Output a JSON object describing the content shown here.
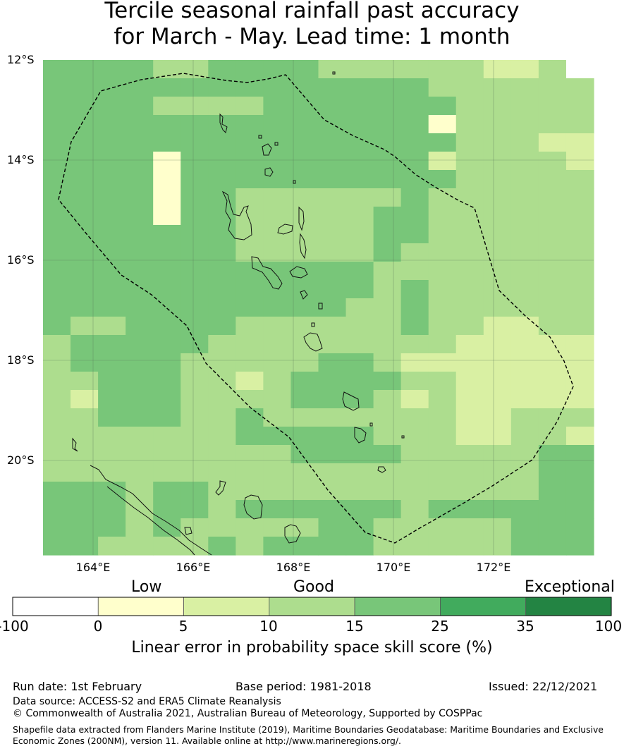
{
  "title": {
    "line1": "Tercile seasonal rainfall past accuracy",
    "line2": "for March - May. Lead time: 1 month"
  },
  "map": {
    "latitude_labels": [
      "12°S",
      "14°S",
      "16°S",
      "18°S",
      "20°S"
    ],
    "longitude_labels": [
      "164°E",
      "166°E",
      "168°E",
      "170°E",
      "172°E"
    ],
    "boundary_name": "Vanuatu exclusive economic zone (dashed)",
    "grid": [
      "22223322223333334435",
      "22222222222222333333",
      "22223333222222233333",
      "22222222222222133333",
      "22222222222222233344",
      "22221222222222433334",
      "22221222222222233333",
      "22221223333332333333",
      "22221223333322333333",
      "22222223333322333333",
      "22222223333323333333",
      "22222222222233333333",
      "22222222222232333333",
      "22222222222332333333",
      "23322223333332334433",
      "32222233333333344444",
      "32222333332234444444",
      "33222334322223344444",
      "34222333322234344444",
      "33222332333333344333",
      "33333332222233344334",
      "33333333322223333322",
      "33333333333333333322",
      "22232233333333333322",
      "22232232222223222222",
      "22232333332233333222",
      "22333323222233333222"
    ]
  },
  "colors": {
    "1": "#ffffcc",
    "2": "#78c679",
    "3": "#addd8e",
    "4": "#d9f0a3",
    "5": "#ffffff",
    "6": "#41ab5d"
  },
  "legend": {
    "categories": [
      "Low",
      "Good",
      "Exceptional"
    ],
    "ticks": [
      "-100",
      "0",
      "5",
      "10",
      "15",
      "25",
      "35",
      "100"
    ],
    "bins": [
      {
        "from": -100,
        "to": 0,
        "color": "#ffffff"
      },
      {
        "from": 0,
        "to": 5,
        "color": "#ffffcc"
      },
      {
        "from": 5,
        "to": 10,
        "color": "#d9f0a3"
      },
      {
        "from": 10,
        "to": 15,
        "color": "#addd8e"
      },
      {
        "from": 15,
        "to": 25,
        "color": "#78c679"
      },
      {
        "from": 25,
        "to": 35,
        "color": "#41ab5d"
      },
      {
        "from": 35,
        "to": 100,
        "color": "#238443"
      }
    ],
    "title": "Linear error in probability space skill score (%)"
  },
  "footer": {
    "run_date": "Run date: 1st February",
    "base_period": "Base period: 1981-2018",
    "issued": "Issued: 22/12/2021",
    "data_source": "Data source: ACCESS-S2 and ERA5 Climate Reanalysis",
    "copyright": "© Commonwealth of Australia 2021, Australian Bureau of Meteorology, Supported by COSPPac",
    "shapefile": "Shapefile data extracted from Flanders Marine Institute (2019), Maritime Boundaries Geodatabase: Maritime Boundaries and Exclusive Economic Zones (200NM), version 11. Available online at http://www.marineregions.org/."
  }
}
